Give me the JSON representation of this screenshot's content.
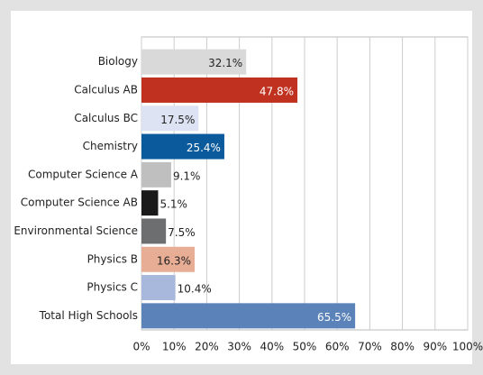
{
  "chart_data": {
    "type": "barh",
    "categories": [
      "Biology",
      "Calculus AB",
      "Calculus BC",
      "Chemistry",
      "Computer Science A",
      "Computer Science AB",
      "Environmental Science",
      "Physics B",
      "Physics C",
      "Total High Schools"
    ],
    "values": [
      32.1,
      47.8,
      17.5,
      25.4,
      9.1,
      5.1,
      7.5,
      16.3,
      10.4,
      65.5
    ],
    "value_labels": [
      "32.1%",
      "47.8%",
      "17.5%",
      "25.4%",
      "9.1%",
      "5.1%",
      "7.5%",
      "16.3%",
      "10.4%",
      "65.5%"
    ],
    "colors": [
      "#d9d9d9",
      "#c0311f",
      "#dde3f2",
      "#0b5a9c",
      "#bfbfbf",
      "#1a1a1a",
      "#6d6e70",
      "#e8ad95",
      "#a8b8dc",
      "#5b83b9"
    ],
    "xlim": [
      0,
      100
    ],
    "xticks": [
      {
        "value": 0,
        "label": "0%"
      },
      {
        "value": 10,
        "label": "10%"
      },
      {
        "value": 20,
        "label": "20%"
      },
      {
        "value": 30,
        "label": "30%"
      },
      {
        "value": 40,
        "label": "40%"
      },
      {
        "value": 50,
        "label": "50%"
      },
      {
        "value": 60,
        "label": "60%"
      },
      {
        "value": 70,
        "label": "70%"
      },
      {
        "value": 80,
        "label": "80%"
      },
      {
        "value": 90,
        "label": "90%"
      },
      {
        "value": 100,
        "label": "100%"
      }
    ],
    "grid": true
  }
}
